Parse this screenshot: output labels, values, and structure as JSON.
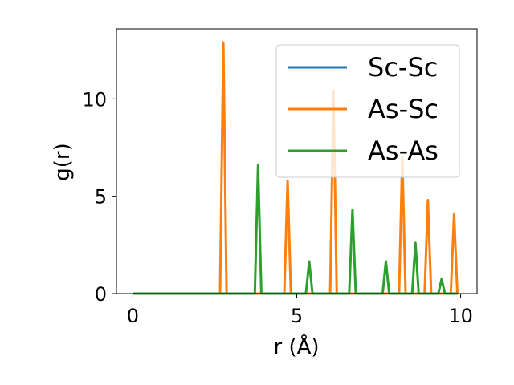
{
  "chart_data": {
    "type": "line",
    "xlabel": "r (Å)",
    "ylabel": "g(r)",
    "xlim": [
      -0.5,
      10.5
    ],
    "ylim": [
      0,
      13.6
    ],
    "xticks": [
      0,
      5,
      10
    ],
    "yticks": [
      0,
      5,
      10
    ],
    "grid": false,
    "legend": "top-right",
    "series": [
      {
        "name": "Sc-Sc",
        "color": "#1f77b4",
        "x": [
          0,
          9.9
        ],
        "y": [
          0,
          0
        ]
      },
      {
        "name": "As-Sc",
        "color": "#ff7f0e",
        "x": [
          0,
          2.66,
          2.76,
          2.86,
          4.62,
          4.72,
          4.82,
          6.02,
          6.12,
          6.22,
          8.12,
          8.22,
          8.32,
          8.9,
          9.0,
          9.1,
          9.7,
          9.8,
          9.9
        ],
        "y": [
          0,
          0,
          12.9,
          0,
          0,
          5.8,
          0,
          0,
          10.4,
          0,
          0,
          7.0,
          0,
          0,
          4.8,
          0,
          0,
          4.1,
          0
        ]
      },
      {
        "name": "As-As",
        "color": "#2ca02c",
        "x": [
          0,
          3.72,
          3.82,
          3.92,
          5.28,
          5.38,
          5.48,
          6.6,
          6.7,
          6.8,
          7.62,
          7.72,
          7.82,
          8.52,
          8.62,
          8.72,
          9.32,
          9.42,
          9.52,
          9.9
        ],
        "y": [
          0,
          0,
          6.6,
          0,
          0,
          1.65,
          0,
          0,
          4.3,
          0,
          0,
          1.65,
          0,
          0,
          2.6,
          0,
          0,
          0.75,
          0,
          0
        ]
      }
    ]
  }
}
